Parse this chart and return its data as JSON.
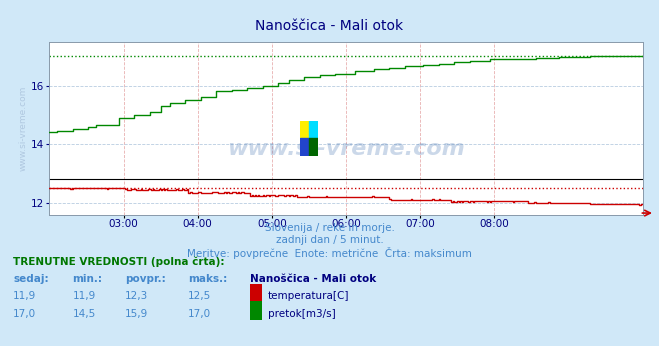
{
  "title": "Nanoščica - Mali otok",
  "title_color": "#000080",
  "title_fontsize": 10,
  "fig_bg_color": "#d0e8f8",
  "plot_bg_color": "#ffffff",
  "xmin": 0,
  "xmax": 384,
  "ymin": 11.6,
  "ymax": 17.5,
  "yticks": [
    12,
    14,
    16
  ],
  "xtick_labels": [
    "03:00",
    "04:00",
    "05:00",
    "06:00",
    "07:00",
    "08:00"
  ],
  "xtick_positions": [
    48,
    96,
    144,
    192,
    240,
    288
  ],
  "temp_color": "#cc0000",
  "flow_color": "#008800",
  "max_temp": 12.5,
  "max_flow": 17.0,
  "black_line_val": 12.8,
  "subtitle1": "Slovenija / reke in morje.",
  "subtitle2": "zadnji dan / 5 minut.",
  "subtitle3": "Meritve: povprečne  Enote: metrične  Črta: maksimum",
  "subtitle_color": "#4488cc",
  "legend_title": "TRENUTNE VREDNOSTI (polna črta):",
  "legend_title_color": "#007700",
  "col_headers": [
    "sedaj:",
    "min.:",
    "povpr.:",
    "maks.:",
    "Nanoščica - Mali otok"
  ],
  "temp_row": [
    "11,9",
    "11,9",
    "12,3",
    "12,5",
    "temperatura[C]"
  ],
  "flow_row": [
    "17,0",
    "14,5",
    "15,9",
    "17,0",
    "pretok[m3/s]"
  ],
  "ylabel_text": "www.si-vreme.com",
  "ylabel_color": "#b0c8e0",
  "watermark_text": "www.si-vreme.com",
  "watermark_color": "#3366aa",
  "watermark_alpha": 0.25
}
